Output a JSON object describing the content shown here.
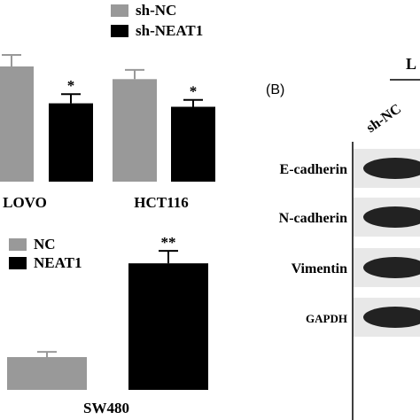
{
  "chart_data": [
    {
      "type": "bar",
      "categories": [
        "LOVO",
        "HCT116"
      ],
      "series": [
        {
          "name": "sh-NC",
          "color": "#999999",
          "values": [
            1.0,
            0.89
          ],
          "errors": [
            0.1,
            0.08
          ]
        },
        {
          "name": "sh-NEAT1",
          "color": "#000000",
          "values": [
            0.68,
            0.65
          ],
          "errors": [
            0.08,
            0.06
          ]
        }
      ],
      "annotations": [
        "*",
        "*"
      ]
    },
    {
      "type": "bar",
      "categories": [
        "SW480"
      ],
      "series": [
        {
          "name": "NC",
          "color": "#999999",
          "values": [
            1.0
          ],
          "errors": [
            0.16
          ]
        },
        {
          "name": "NEAT1",
          "color": "#000000",
          "values": [
            3.86
          ],
          "errors": [
            0.38
          ]
        }
      ],
      "annotations": [
        "**"
      ]
    }
  ],
  "blot": {
    "panel_label": "(B)",
    "header": "L",
    "lane_label": "sh-NC",
    "rows": [
      "E-cadherin",
      "N-cadherin",
      "Vimentin",
      "GAPDH"
    ]
  }
}
